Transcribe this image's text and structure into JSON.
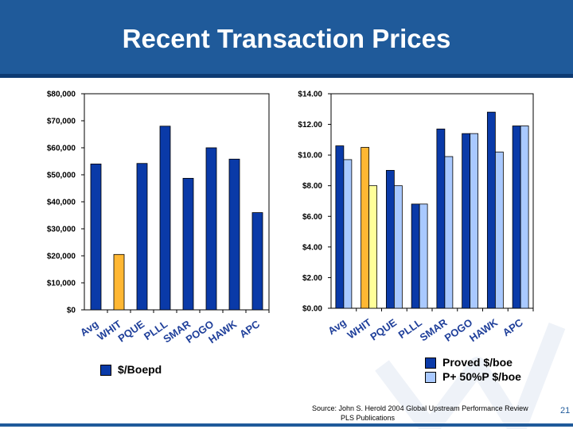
{
  "title": "Recent Transaction Prices",
  "colors": {
    "header": "#1f5a9a",
    "primary": "#0a3aa8",
    "highlight": "#ffb733",
    "highlight_light": "#ffff99",
    "secondary": "#a9c9ff"
  },
  "chart_data": [
    {
      "type": "bar",
      "categories": [
        "Avg",
        "WHIT",
        "PQUE",
        "PLLL",
        "SMAR",
        "POGO",
        "HAWK",
        "APC"
      ],
      "series": [
        {
          "name": "$/Boepd",
          "values": [
            54000,
            20500,
            54200,
            68000,
            48700,
            60000,
            55800,
            36000
          ]
        }
      ],
      "highlight_category": "WHIT",
      "yticks": [
        "$0",
        "$10,000",
        "$20,000",
        "$30,000",
        "$40,000",
        "$50,000",
        "$60,000",
        "$70,000",
        "$80,000"
      ],
      "ylim": [
        0,
        80000
      ],
      "grid": false,
      "legend": "bottom"
    },
    {
      "type": "bar",
      "categories": [
        "Avg",
        "WHIT",
        "PQUE",
        "PLLL",
        "SMAR",
        "POGO",
        "HAWK",
        "APC"
      ],
      "series": [
        {
          "name": "Proved $/boe",
          "values": [
            10.6,
            10.5,
            9.0,
            6.8,
            11.7,
            11.4,
            12.8,
            11.9
          ]
        },
        {
          "name": "P+ 50%P $/boe",
          "values": [
            9.7,
            8.0,
            8.0,
            6.8,
            9.9,
            11.4,
            10.2,
            11.9
          ]
        }
      ],
      "highlight_category": "WHIT",
      "yticks": [
        "$0.00",
        "$2.00",
        "$4.00",
        "$6.00",
        "$8.00",
        "$10.00",
        "$12.00",
        "$14.00"
      ],
      "ylim": [
        0,
        14
      ],
      "grid": false,
      "legend": "bottom-right"
    }
  ],
  "source": {
    "line1": "Source: John S. Herold 2004 Global Upstream Performance Review",
    "line2": "PLS Publications"
  },
  "page_number": "21"
}
